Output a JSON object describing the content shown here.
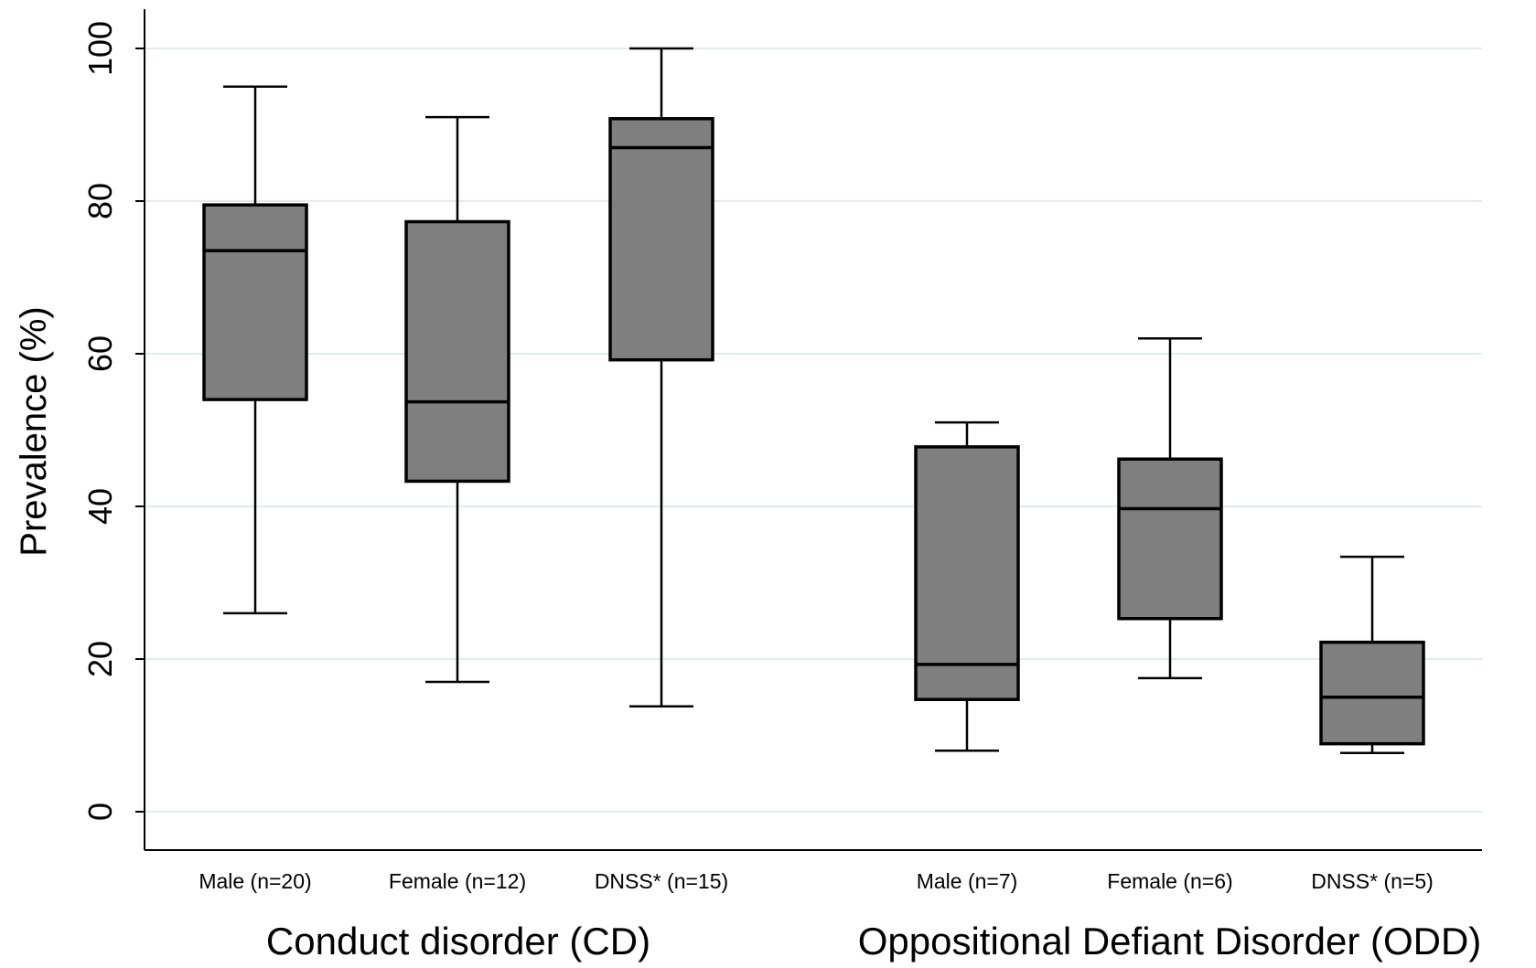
{
  "chart_data": {
    "type": "box",
    "ylabel": "Prevalence (%)",
    "ylim": [
      0,
      100
    ],
    "yticks": [
      0,
      20,
      40,
      60,
      80,
      100
    ],
    "grid": true,
    "colors": {
      "box_fill": "#7f7f7f",
      "grid": "#e4ebeb",
      "line": "#000000"
    },
    "groups": [
      {
        "label": "Conduct disorder (CD)",
        "categories": [
          0,
          1,
          2
        ]
      },
      {
        "label": "Oppositional Defiant Disorder (ODD)",
        "categories": [
          3,
          4,
          5
        ]
      }
    ],
    "categories": [
      "Male (n=20)",
      "Female (n=12)",
      "DNSS* (n=15)",
      "Male (n=7)",
      "Female (n=6)",
      "DNSS* (n=5)"
    ],
    "boxes": [
      {
        "min": 26,
        "q1": 54,
        "median": 73.5,
        "q3": 79.5,
        "max": 95
      },
      {
        "min": 17,
        "q1": 43.3,
        "median": 53.7,
        "q3": 77.3,
        "max": 91
      },
      {
        "min": 13.8,
        "q1": 59.2,
        "median": 87,
        "q3": 90.8,
        "max": 100
      },
      {
        "min": 8,
        "q1": 14.7,
        "median": 19.3,
        "q3": 47.8,
        "max": 51
      },
      {
        "min": 17.5,
        "q1": 25.3,
        "median": 39.7,
        "q3": 46.2,
        "max": 62
      },
      {
        "min": 7.7,
        "q1": 8.9,
        "median": 15,
        "q3": 22.2,
        "max": 33.4
      }
    ]
  }
}
